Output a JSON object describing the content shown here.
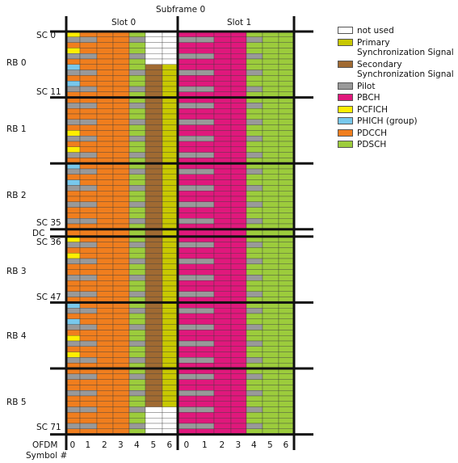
{
  "title": "Subframe 0",
  "slots": [
    "Slot 0",
    "Slot 1"
  ],
  "sc_labels": [
    {
      "text": "SC 0",
      "sc": 0
    },
    {
      "text": "SC 11",
      "sc": 11
    },
    {
      "text": "SC 35",
      "sc": 35
    },
    {
      "text": "SC 36",
      "sc": 36
    },
    {
      "text": "SC 47",
      "sc": 47
    },
    {
      "text": "SC 71",
      "sc": 71
    }
  ],
  "dc_label": "DC",
  "rb_labels": [
    "RB 0",
    "RB 1",
    "RB 2",
    "RB 3",
    "RB 4",
    "RB 5"
  ],
  "ofdm_label_1": "OFDM",
  "ofdm_label_2": "Symbol #",
  "symbols": [
    "0",
    "1",
    "2",
    "3",
    "4",
    "5",
    "6",
    "0",
    "1",
    "2",
    "3",
    "4",
    "5",
    "6"
  ],
  "legend": [
    {
      "key": "notused",
      "label": "not used",
      "color": "#ffffff"
    },
    {
      "key": "pss",
      "label": "Primary Synchronization Signal",
      "color": "#c8c800"
    },
    {
      "key": "sss",
      "label": "Secondary Synchronization Signal",
      "color": "#a06a32"
    },
    {
      "key": "pilot",
      "label": "Pilot",
      "color": "#999999"
    },
    {
      "key": "pbch",
      "label": "PBCH",
      "color": "#e0187c"
    },
    {
      "key": "pcfich",
      "label": "PCFICH",
      "color": "#ffee00"
    },
    {
      "key": "phich",
      "label": "PHICH (group)",
      "color": "#78c8ec"
    },
    {
      "key": "pdcch",
      "label": "PDCCH",
      "color": "#f07e1e"
    },
    {
      "key": "pdsch",
      "label": "PDSCH",
      "color": "#9ccc3c"
    }
  ]
}
